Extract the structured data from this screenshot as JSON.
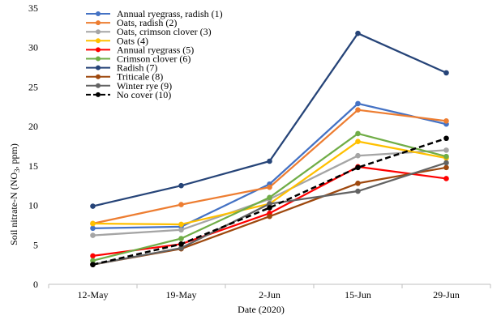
{
  "chart_data": {
    "type": "line",
    "xlabel": "Date (2020)",
    "ylabel_prefix": "Soil nitrate-N (NO",
    "ylabel_sub": "3",
    "ylabel_suffix": ", ppm)",
    "categories": [
      "12-May",
      "19-May",
      "2-Jun",
      "15-Jun",
      "29-Jun"
    ],
    "ylim": [
      0,
      35
    ],
    "yticks": [
      0,
      5,
      10,
      15,
      20,
      25,
      30,
      35
    ],
    "grid": false,
    "legend_position": "top-left",
    "series": [
      {
        "name": "Annual ryegrass, radish (1)",
        "color": "#4472C4",
        "dashed": false,
        "values": [
          7.1,
          7.3,
          12.7,
          22.9,
          20.3
        ]
      },
      {
        "name": "Oats, radish (2)",
        "color": "#ED7D31",
        "dashed": false,
        "values": [
          7.7,
          10.1,
          12.3,
          22.1,
          20.7
        ]
      },
      {
        "name": "Oats, crimson clover (3)",
        "color": "#A5A5A5",
        "dashed": false,
        "values": [
          6.2,
          6.9,
          10.8,
          16.3,
          17.0
        ]
      },
      {
        "name": "Oats (4)",
        "color": "#FFC000",
        "dashed": false,
        "values": [
          7.7,
          7.6,
          10.2,
          18.1,
          16.0
        ]
      },
      {
        "name": "Annual ryegrass (5)",
        "color": "#FF0000",
        "dashed": false,
        "values": [
          3.6,
          5.1,
          9.0,
          14.9,
          13.4
        ]
      },
      {
        "name": "Crimson clover (6)",
        "color": "#70AD47",
        "dashed": false,
        "values": [
          3.0,
          5.8,
          11.0,
          19.1,
          16.2
        ]
      },
      {
        "name": "Radish (7)",
        "color": "#264478",
        "dashed": false,
        "values": [
          9.9,
          12.5,
          15.6,
          31.8,
          26.8
        ]
      },
      {
        "name": " Triticale (8)",
        "color": "#9E480E",
        "dashed": false,
        "values": [
          2.5,
          4.5,
          8.6,
          12.8,
          14.8
        ]
      },
      {
        "name": "Winter rye (9)",
        "color": "#636363",
        "dashed": false,
        "values": [
          2.5,
          4.6,
          10.2,
          11.8,
          15.4
        ]
      },
      {
        "name": "No cover (10)",
        "color": "#000000",
        "dashed": true,
        "values": [
          2.5,
          5.1,
          9.7,
          14.8,
          18.5
        ]
      }
    ]
  }
}
